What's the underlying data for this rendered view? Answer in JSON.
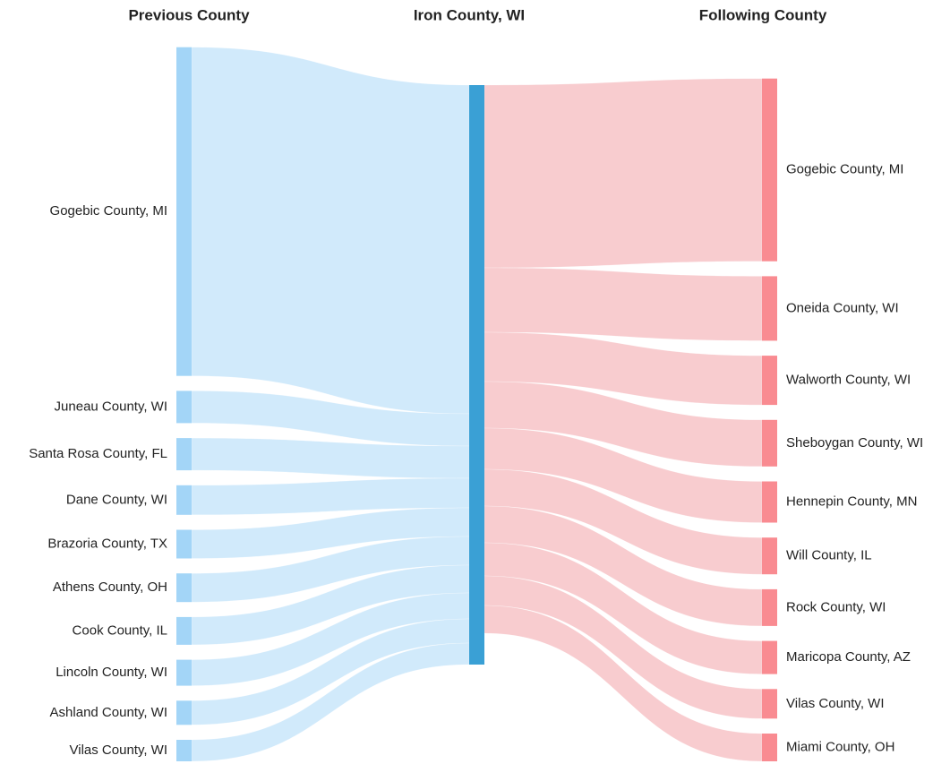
{
  "chart_data": {
    "type": "sankey",
    "headers": [
      "Previous County",
      "Iron County, WI",
      "Following County"
    ],
    "center_color": "#3aa0d5",
    "sources": {
      "categories": [
        "Gogebic County, MI",
        "Juneau County, WI",
        "Santa Rosa County, FL",
        "Dane County, WI",
        "Brazoria County, TX",
        "Athens County, OH",
        "Cook County, IL",
        "Lincoln County, WI",
        "Ashland County, WI",
        "Vilas County, WI"
      ],
      "values": [
        367,
        36,
        36,
        33,
        32,
        32,
        31,
        29,
        27,
        24
      ],
      "color": "#a3d5f7",
      "flow_color": "#d1eafb"
    },
    "targets": {
      "categories": [
        "Gogebic County, MI",
        "Oneida County, WI",
        "Walworth County, WI",
        "Sheboygan County, WI",
        "Hennepin County, MN",
        "Will County, IL",
        "Rock County, WI",
        "Maricopa County, AZ",
        "Vilas County, WI",
        "Miami County, OH"
      ],
      "values": [
        204,
        72,
        55,
        52,
        46,
        41,
        41,
        37,
        33,
        31
      ],
      "color": "#f98b91",
      "flow_color": "#f8cccf"
    }
  }
}
